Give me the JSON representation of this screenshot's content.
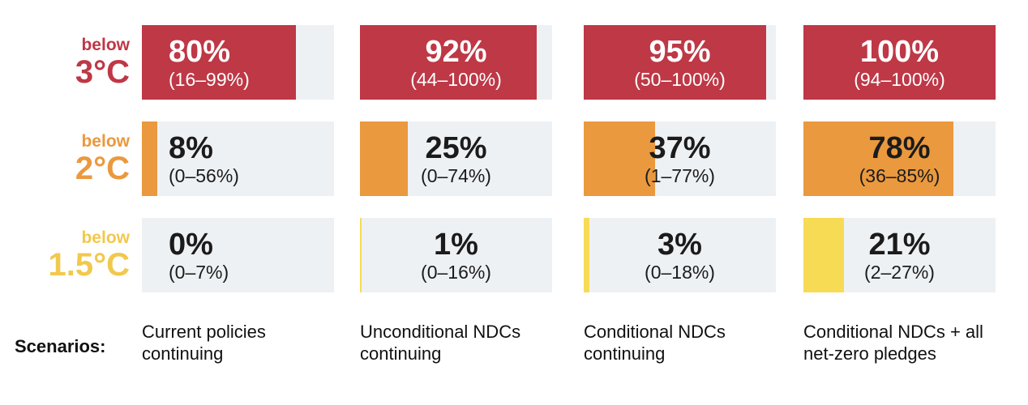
{
  "palette": {
    "red": "#BE3846",
    "orange": "#EA993E",
    "yellow_fill": "#F7DB55",
    "yellow_label": "#F2C84D",
    "track": "#EEF1F4",
    "dark_text": "#1B1B1B",
    "white_text": "#FFFFFF"
  },
  "rows": [
    {
      "id": "below-3c",
      "label_small": "below",
      "label_big": "3°C",
      "label_color": "#BE3846",
      "fill_color": "#BE3846",
      "text_light": true,
      "bars": [
        {
          "value": 80,
          "value_label": "80%",
          "range_label": "(16–99%)"
        },
        {
          "value": 92,
          "value_label": "92%",
          "range_label": "(44–100%)"
        },
        {
          "value": 95,
          "value_label": "95%",
          "range_label": "(50–100%)"
        },
        {
          "value": 100,
          "value_label": "100%",
          "range_label": "(94–100%)"
        }
      ]
    },
    {
      "id": "below-2c",
      "label_small": "below",
      "label_big": "2°C",
      "label_color": "#EA993E",
      "fill_color": "#EA993E",
      "text_light": false,
      "bars": [
        {
          "value": 8,
          "value_label": "8%",
          "range_label": "(0–56%)"
        },
        {
          "value": 25,
          "value_label": "25%",
          "range_label": "(0–74%)"
        },
        {
          "value": 37,
          "value_label": "37%",
          "range_label": "(1–77%)"
        },
        {
          "value": 78,
          "value_label": "78%",
          "range_label": "(36–85%)"
        }
      ]
    },
    {
      "id": "below-1-5c",
      "label_small": "below",
      "label_big": "1.5°C",
      "label_color": "#F2C84D",
      "fill_color": "#F7DB55",
      "text_light": false,
      "bars": [
        {
          "value": 0,
          "value_label": "0%",
          "range_label": "(0–7%)"
        },
        {
          "value": 1,
          "value_label": "1%",
          "range_label": "(0–16%)"
        },
        {
          "value": 3,
          "value_label": "3%",
          "range_label": "(0–18%)"
        },
        {
          "value": 21,
          "value_label": "21%",
          "range_label": "(2–27%)"
        }
      ]
    }
  ],
  "scenarios": {
    "label": "Scenarios:",
    "items": [
      "Current policies continuing",
      "Unconditional NDCs continuing",
      "Conditional NDCs continuing",
      "Conditional NDCs + all net-zero pledges"
    ]
  },
  "chart_data": {
    "type": "bar",
    "orientation": "horizontal",
    "unit": "percent probability",
    "categories": [
      "Current policies continuing",
      "Unconditional NDCs continuing",
      "Conditional NDCs continuing",
      "Conditional NDCs + all net-zero pledges"
    ],
    "series": [
      {
        "name": "below 3°C",
        "values": [
          80,
          92,
          95,
          100
        ],
        "ranges": [
          [
            16,
            99
          ],
          [
            44,
            100
          ],
          [
            50,
            100
          ],
          [
            94,
            100
          ]
        ],
        "color": "#BE3846"
      },
      {
        "name": "below 2°C",
        "values": [
          8,
          25,
          37,
          78
        ],
        "ranges": [
          [
            0,
            56
          ],
          [
            0,
            74
          ],
          [
            1,
            77
          ],
          [
            36,
            85
          ]
        ],
        "color": "#EA993E"
      },
      {
        "name": "below 1.5°C",
        "values": [
          0,
          1,
          3,
          21
        ],
        "ranges": [
          [
            0,
            7
          ],
          [
            0,
            16
          ],
          [
            0,
            18
          ],
          [
            2,
            27
          ]
        ],
        "color": "#F7DB55"
      }
    ],
    "xlim": [
      0,
      100
    ],
    "grid": false,
    "legend": "temperature thresholds as row labels at left"
  }
}
